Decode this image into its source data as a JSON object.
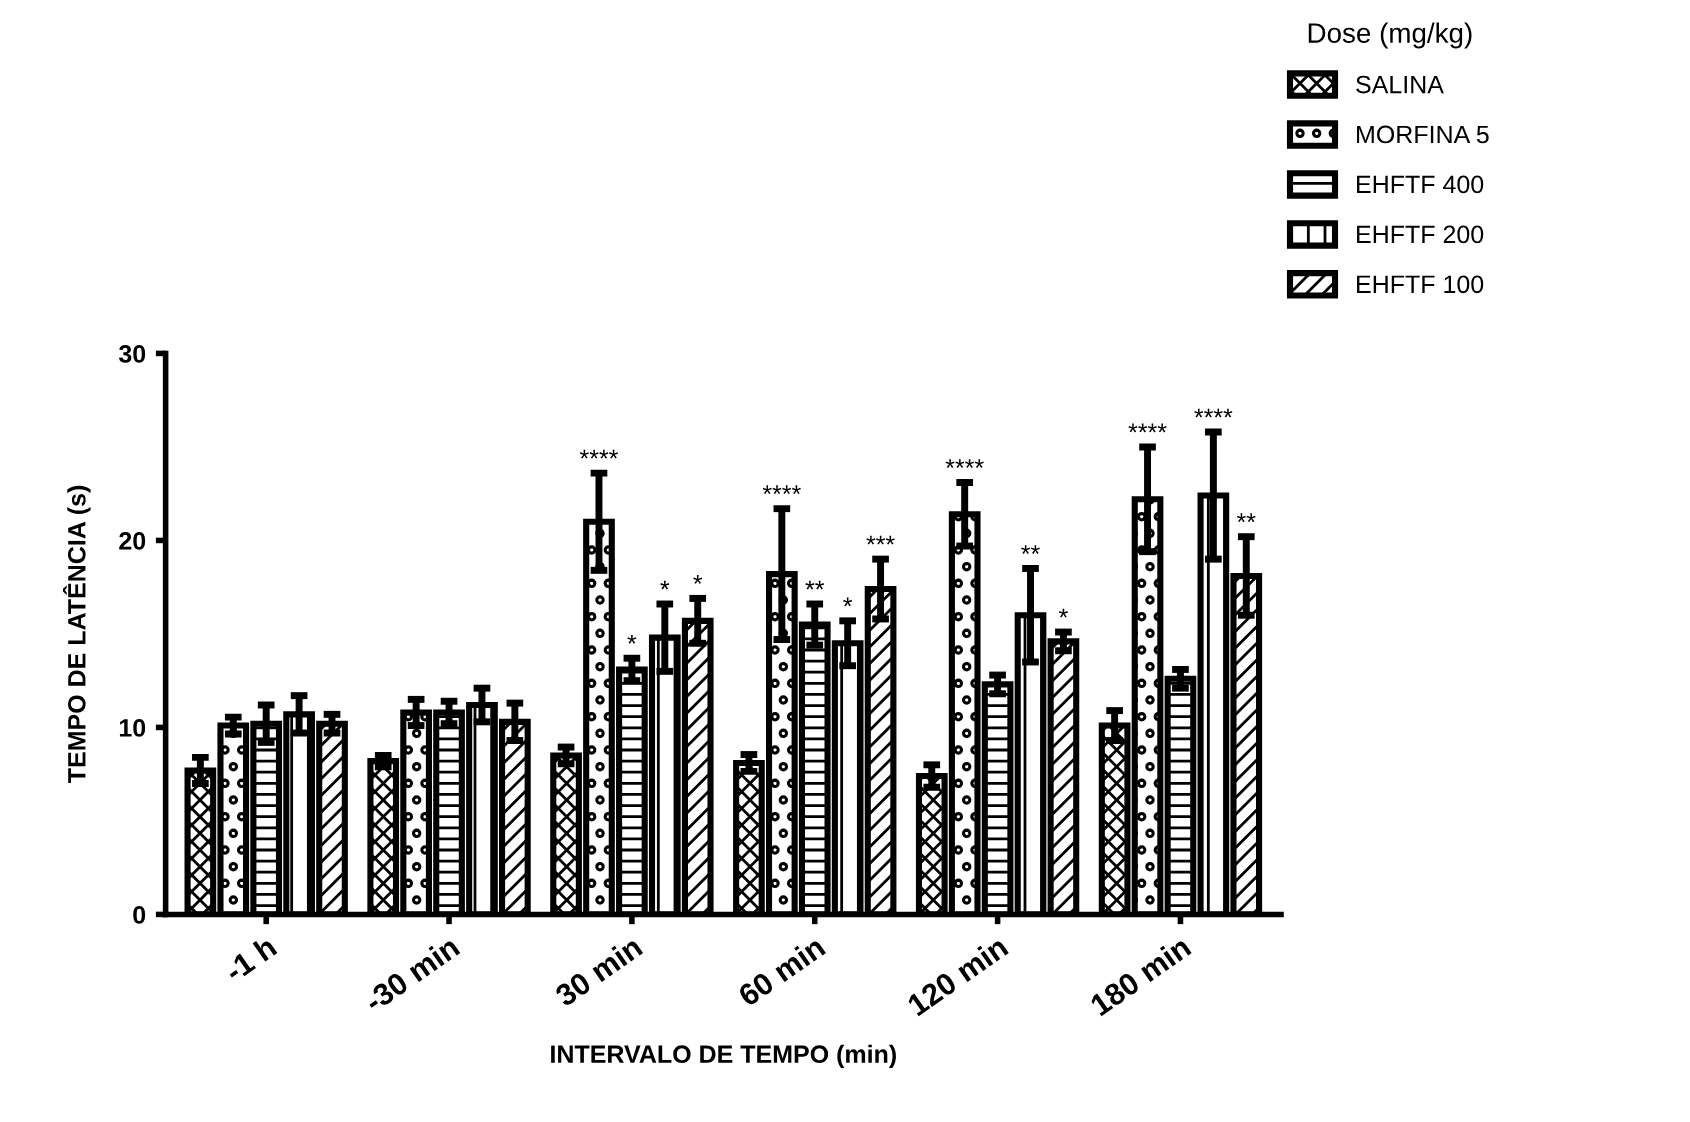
{
  "chart_data": {
    "type": "bar",
    "xlabel": "INTERVALO DE TEMPO (min)",
    "ylabel": "TEMPO DE LATÊNCIA (s)",
    "legend_title": "Dose (mg/kg)",
    "categories": [
      "-1 h",
      "-30 min",
      "30 min",
      "60 min",
      "120 min",
      "180 min"
    ],
    "ylim": [
      0,
      30
    ],
    "yticks": [
      0,
      10,
      20,
      30
    ],
    "grid": false,
    "legend": "top right",
    "series": [
      {
        "name": "SALINA",
        "color": "#000000",
        "values": [
          7.7,
          8.2,
          8.5,
          8.1,
          7.4,
          10.1
        ],
        "errors": [
          0.7,
          0.3,
          0.45,
          0.45,
          0.6,
          0.8
        ],
        "value_labels": [
          null,
          null,
          null,
          null,
          null,
          null
        ]
      },
      {
        "name": "MORFINA 5",
        "color": "#000000",
        "values": [
          10.1,
          10.8,
          21.0,
          18.2,
          21.4,
          22.2
        ],
        "errors": [
          0.45,
          0.7,
          2.6,
          3.5,
          1.7,
          2.8
        ],
        "value_labels": [
          null,
          null,
          "****",
          "****",
          "****",
          "****"
        ]
      },
      {
        "name": "EHFTF 400",
        "color": "#000000",
        "values": [
          10.2,
          10.8,
          13.1,
          15.5,
          12.3,
          12.6
        ],
        "errors": [
          1.0,
          0.6,
          0.6,
          1.1,
          0.5,
          0.5
        ],
        "value_labels": [
          null,
          null,
          "*",
          "**",
          null,
          null
        ]
      },
      {
        "name": "EHFTF 200",
        "color": "#000000",
        "values": [
          10.7,
          11.2,
          14.8,
          14.5,
          16.0,
          22.4
        ],
        "errors": [
          1.0,
          0.9,
          1.8,
          1.2,
          2.5,
          3.4
        ],
        "value_labels": [
          null,
          null,
          "*",
          "*",
          "**",
          "****"
        ]
      },
      {
        "name": "EHFTF 100",
        "color": "#000000",
        "values": [
          10.2,
          10.3,
          15.7,
          17.4,
          14.6,
          18.1
        ],
        "errors": [
          0.5,
          1.0,
          1.2,
          1.6,
          0.5,
          2.1
        ],
        "value_labels": [
          null,
          null,
          "*",
          "***",
          "*",
          "**"
        ]
      }
    ]
  }
}
